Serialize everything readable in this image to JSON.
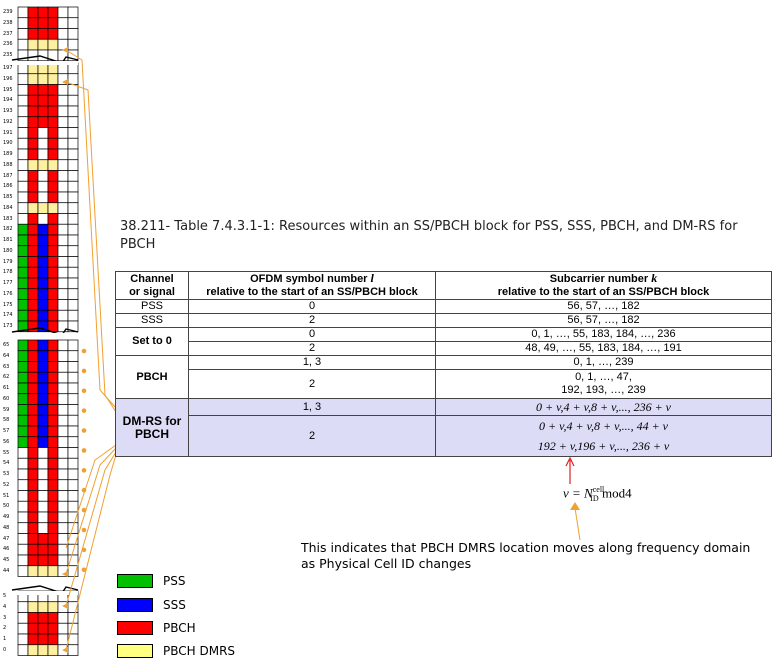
{
  "caption": "38.211- Table 7.4.3.1-1: Resources within an SS/PBCH block for PSS, SSS, PBCH, and DM-RS for PBCH",
  "table": {
    "head_channel_1": "Channel",
    "head_channel_2": "or signal",
    "head_ofdm_1": "OFDM symbol number",
    "head_ofdm_var": "l",
    "head_ofdm_2": "relative to the start of an SS/PBCH block",
    "head_sub_1": "Subcarrier number",
    "head_sub_var": "k",
    "head_sub_2": "relative to the start of an SS/PBCH block",
    "pss": {
      "channel": "PSS",
      "symbol": "0",
      "subcarrier": "56, 57, …, 182"
    },
    "sss": {
      "channel": "SSS",
      "symbol": "2",
      "subcarrier": "56, 57, …, 182"
    },
    "set0": {
      "channel": "Set to 0",
      "sym1": "0",
      "sub1": "0, 1, …, 55, 183, 184, …, 236",
      "sym2": "2",
      "sub2": "48, 49, …, 55, 183, 184, …, 191"
    },
    "pbch": {
      "channel": "PBCH",
      "sym1": "1, 3",
      "sub1": "0, 1, …, 239",
      "sym2": "2",
      "sub2a": "0, 1, …, 47,",
      "sub2b": "192, 193, …, 239"
    },
    "dmrs": {
      "channel_1": "DM-RS for",
      "channel_2": "PBCH",
      "sym1": "1, 3",
      "sub1": "0 + v,4 + v,8 + v,..., 236 + v",
      "sym2": "2",
      "sub2a": "0 + v,4 + v,8 + v,..., 44 + v",
      "sub2b": "192 + v,196 + v,..., 236 + v"
    }
  },
  "v_formula": "v = N_ID^cell mod4",
  "v_formula_parts": {
    "lhs": "v = N",
    "sub": "ID",
    "sup": "cell",
    "rhs": " mod4"
  },
  "note": "This indicates that PBCH DMRS location moves along frequency domain as Physical Cell ID changes",
  "legend": [
    {
      "label": "PSS",
      "color": "#00c000"
    },
    {
      "label": "SSS",
      "color": "#0000ff"
    },
    {
      "label": "PBCH",
      "color": "#ff0000"
    },
    {
      "label": "PBCH DMRS",
      "color": "#ffff80"
    }
  ],
  "grid_labels": {
    "top": [
      "239",
      "238",
      "237",
      "236",
      "235"
    ],
    "mid1": [
      "197",
      "196",
      "195",
      "194",
      "193",
      "192",
      "191",
      "190",
      "189",
      "188",
      "187",
      "186",
      "185",
      "184",
      "183",
      "182",
      "181",
      "180",
      "179",
      "178",
      "177",
      "176",
      "175",
      "174",
      "173"
    ],
    "mid2": [
      "65",
      "64",
      "63",
      "62",
      "61",
      "60",
      "59",
      "58",
      "57",
      "56",
      "55",
      "54",
      "53",
      "52",
      "51",
      "50",
      "49",
      "48",
      "47",
      "46",
      "45",
      "44"
    ],
    "bottom": [
      "5",
      "4",
      "3",
      "2",
      "1",
      "0"
    ]
  },
  "colors": {
    "accent_orange": "#f0a030",
    "highlight": "#dcdcf7",
    "dmrs_yellow": "#fff0a0"
  }
}
